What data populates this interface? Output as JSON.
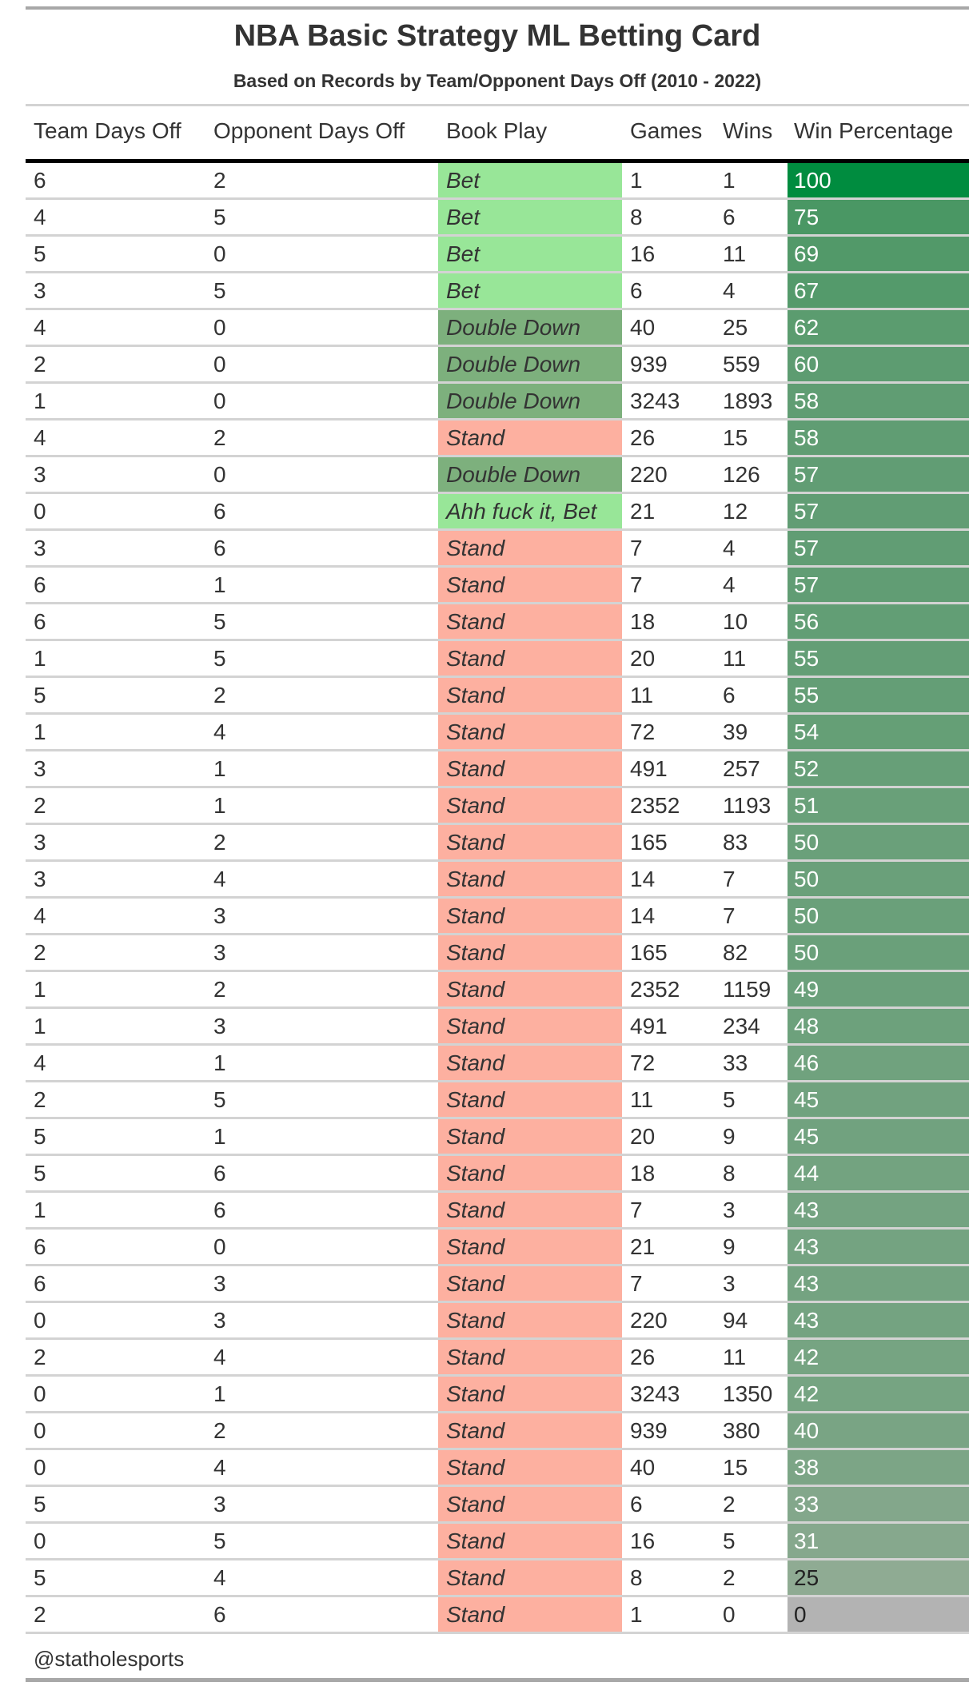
{
  "title": "NBA Basic Strategy ML Betting Card",
  "subtitle": "Based on Records by Team/Opponent Days Off (2010 - 2022)",
  "columns": [
    "Team Days Off",
    "Opponent Days Off",
    "Book Play",
    "Games",
    "Wins",
    "Win Percentage"
  ],
  "play_colors": {
    "Bet": "#98e698",
    "Ahh fuck it, Bet": "#98e698",
    "Double Down": "#7db07d",
    "Stand": "#fdb0a0"
  },
  "win_pct_colors": {
    "0": "#b3b3b3",
    "25": "#8fab93",
    "50": "#6aa07a",
    "75": "#4a9764",
    "100": "#008c3f"
  },
  "rows": [
    [
      "6",
      "2",
      "Bet",
      "1",
      "1",
      "100"
    ],
    [
      "4",
      "5",
      "Bet",
      "8",
      "6",
      "75"
    ],
    [
      "5",
      "0",
      "Bet",
      "16",
      "11",
      "69"
    ],
    [
      "3",
      "5",
      "Bet",
      "6",
      "4",
      "67"
    ],
    [
      "4",
      "0",
      "Double Down",
      "40",
      "25",
      "62"
    ],
    [
      "2",
      "0",
      "Double Down",
      "939",
      "559",
      "60"
    ],
    [
      "1",
      "0",
      "Double Down",
      "3243",
      "1893",
      "58"
    ],
    [
      "4",
      "2",
      "Stand",
      "26",
      "15",
      "58"
    ],
    [
      "3",
      "0",
      "Double Down",
      "220",
      "126",
      "57"
    ],
    [
      "0",
      "6",
      "Ahh fuck it, Bet",
      "21",
      "12",
      "57"
    ],
    [
      "3",
      "6",
      "Stand",
      "7",
      "4",
      "57"
    ],
    [
      "6",
      "1",
      "Stand",
      "7",
      "4",
      "57"
    ],
    [
      "6",
      "5",
      "Stand",
      "18",
      "10",
      "56"
    ],
    [
      "1",
      "5",
      "Stand",
      "20",
      "11",
      "55"
    ],
    [
      "5",
      "2",
      "Stand",
      "11",
      "6",
      "55"
    ],
    [
      "1",
      "4",
      "Stand",
      "72",
      "39",
      "54"
    ],
    [
      "3",
      "1",
      "Stand",
      "491",
      "257",
      "52"
    ],
    [
      "2",
      "1",
      "Stand",
      "2352",
      "1193",
      "51"
    ],
    [
      "3",
      "2",
      "Stand",
      "165",
      "83",
      "50"
    ],
    [
      "3",
      "4",
      "Stand",
      "14",
      "7",
      "50"
    ],
    [
      "4",
      "3",
      "Stand",
      "14",
      "7",
      "50"
    ],
    [
      "2",
      "3",
      "Stand",
      "165",
      "82",
      "50"
    ],
    [
      "1",
      "2",
      "Stand",
      "2352",
      "1159",
      "49"
    ],
    [
      "1",
      "3",
      "Stand",
      "491",
      "234",
      "48"
    ],
    [
      "4",
      "1",
      "Stand",
      "72",
      "33",
      "46"
    ],
    [
      "2",
      "5",
      "Stand",
      "11",
      "5",
      "45"
    ],
    [
      "5",
      "1",
      "Stand",
      "20",
      "9",
      "45"
    ],
    [
      "5",
      "6",
      "Stand",
      "18",
      "8",
      "44"
    ],
    [
      "1",
      "6",
      "Stand",
      "7",
      "3",
      "43"
    ],
    [
      "6",
      "0",
      "Stand",
      "21",
      "9",
      "43"
    ],
    [
      "6",
      "3",
      "Stand",
      "7",
      "3",
      "43"
    ],
    [
      "0",
      "3",
      "Stand",
      "220",
      "94",
      "43"
    ],
    [
      "2",
      "4",
      "Stand",
      "26",
      "11",
      "42"
    ],
    [
      "0",
      "1",
      "Stand",
      "3243",
      "1350",
      "42"
    ],
    [
      "0",
      "2",
      "Stand",
      "939",
      "380",
      "40"
    ],
    [
      "0",
      "4",
      "Stand",
      "40",
      "15",
      "38"
    ],
    [
      "5",
      "3",
      "Stand",
      "6",
      "2",
      "33"
    ],
    [
      "0",
      "5",
      "Stand",
      "16",
      "5",
      "31"
    ],
    [
      "5",
      "4",
      "Stand",
      "8",
      "2",
      "25"
    ],
    [
      "2",
      "6",
      "Stand",
      "1",
      "0",
      "0"
    ]
  ],
  "footer": "@statholesports"
}
